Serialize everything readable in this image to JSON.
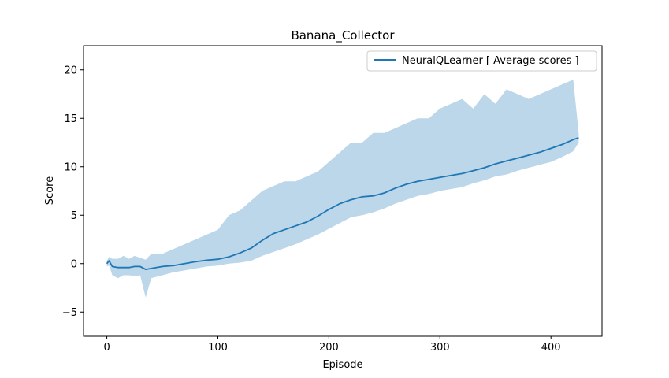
{
  "chart_data": {
    "type": "line",
    "title": "Banana_Collector",
    "xlabel": "Episode",
    "ylabel": "Score",
    "xlim": [
      -21,
      446
    ],
    "ylim": [
      -7.5,
      22.5
    ],
    "xticks": [
      0,
      100,
      200,
      300,
      400
    ],
    "yticks": [
      -5,
      0,
      5,
      10,
      15,
      20
    ],
    "xtick_labels": [
      "0",
      "100",
      "200",
      "300",
      "400"
    ],
    "ytick_labels": [
      "−5",
      "0",
      "5",
      "10",
      "15",
      "20"
    ],
    "grid": false,
    "legend": {
      "position": "top-right"
    },
    "series": [
      {
        "name": "NeuralQLearner [ Average scores ]",
        "color": "#1f77b4",
        "x": [
          0,
          2,
          5,
          10,
          15,
          20,
          25,
          30,
          35,
          40,
          50,
          60,
          70,
          80,
          90,
          100,
          110,
          120,
          130,
          140,
          150,
          160,
          170,
          180,
          190,
          200,
          210,
          220,
          230,
          240,
          250,
          260,
          270,
          280,
          290,
          300,
          310,
          320,
          330,
          340,
          350,
          360,
          370,
          380,
          390,
          400,
          410,
          420,
          425
        ],
        "y": [
          0.0,
          0.3,
          -0.3,
          -0.4,
          -0.4,
          -0.4,
          -0.3,
          -0.3,
          -0.6,
          -0.5,
          -0.3,
          -0.2,
          0.0,
          0.2,
          0.35,
          0.45,
          0.7,
          1.1,
          1.6,
          2.4,
          3.1,
          3.5,
          3.9,
          4.3,
          4.9,
          5.6,
          6.2,
          6.6,
          6.9,
          7.0,
          7.3,
          7.8,
          8.2,
          8.5,
          8.7,
          8.9,
          9.1,
          9.3,
          9.6,
          9.9,
          10.3,
          10.6,
          10.9,
          11.2,
          11.5,
          11.9,
          12.3,
          12.8,
          13.0
        ],
        "band_upper": [
          0.3,
          0.7,
          0.5,
          0.5,
          0.8,
          0.5,
          0.8,
          0.6,
          0.4,
          1.0,
          1.0,
          1.5,
          2.0,
          2.5,
          3.0,
          3.5,
          5.0,
          5.5,
          6.5,
          7.5,
          8.0,
          8.5,
          8.5,
          9.0,
          9.5,
          10.5,
          11.5,
          12.5,
          12.5,
          13.5,
          13.5,
          14.0,
          14.5,
          15.0,
          15.0,
          16.0,
          16.5,
          17.0,
          16.0,
          17.5,
          16.5,
          18.0,
          17.5,
          17.0,
          17.5,
          18.0,
          18.5,
          19.0,
          13.5
        ],
        "band_lower": [
          -0.3,
          -0.2,
          -1.2,
          -1.5,
          -1.2,
          -1.2,
          -1.3,
          -1.2,
          -3.5,
          -1.5,
          -1.2,
          -0.9,
          -0.7,
          -0.5,
          -0.3,
          -0.2,
          0.0,
          0.1,
          0.3,
          0.8,
          1.2,
          1.6,
          2.0,
          2.5,
          3.0,
          3.6,
          4.2,
          4.8,
          5.0,
          5.3,
          5.7,
          6.2,
          6.6,
          7.0,
          7.2,
          7.5,
          7.7,
          7.9,
          8.3,
          8.6,
          9.0,
          9.2,
          9.6,
          9.9,
          10.2,
          10.5,
          11.0,
          11.6,
          12.5
        ],
        "band_color": "#a6c8e3"
      }
    ]
  }
}
